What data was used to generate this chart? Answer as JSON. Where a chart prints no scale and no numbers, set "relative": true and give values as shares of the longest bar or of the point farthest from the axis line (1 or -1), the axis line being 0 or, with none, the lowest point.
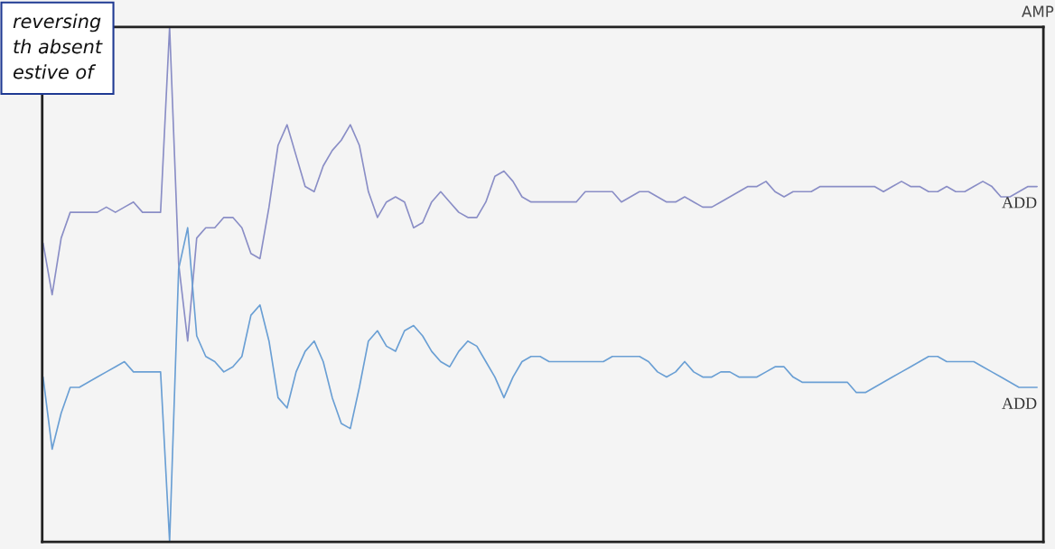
{
  "chart_data": {
    "type": "line",
    "title": "AMP",
    "relative": true,
    "legend": false,
    "annotations": [
      "reversing\nth absent\nestive of"
    ],
    "categories": [
      null,
      null,
      null,
      null,
      null,
      null,
      null,
      null,
      null,
      null,
      null,
      null,
      null,
      null,
      null,
      null,
      null,
      null,
      null,
      null,
      null,
      null,
      null,
      null,
      null,
      null,
      null,
      null,
      null,
      null,
      null,
      null,
      null,
      null,
      null,
      null,
      null,
      null,
      null,
      null,
      null,
      null,
      null,
      null,
      null,
      null,
      null,
      null,
      null,
      null,
      null,
      null,
      null,
      null,
      null,
      null,
      null,
      null,
      null,
      null,
      null,
      null,
      null,
      null,
      null,
      null,
      null,
      null,
      null,
      null,
      null,
      null,
      null,
      null,
      null,
      null,
      null,
      null,
      null,
      null,
      null,
      null,
      null,
      null,
      null,
      null,
      null,
      null,
      null,
      null,
      null,
      null,
      null,
      null,
      null,
      null,
      null,
      null,
      null,
      null,
      null,
      null,
      null,
      null,
      null,
      null,
      null,
      null,
      null,
      null,
      null
    ],
    "series": [
      {
        "name": "ADD",
        "color": "#8a8ec6",
        "values": [
          0.58,
          0.48,
          0.59,
          0.64,
          0.64,
          0.64,
          0.64,
          0.65,
          0.64,
          0.65,
          0.66,
          0.64,
          0.64,
          0.64,
          1,
          0.54,
          0.39,
          0.59,
          0.61,
          0.61,
          0.63,
          0.63,
          0.61,
          0.56,
          0.55,
          0.65,
          0.77,
          0.81,
          0.75,
          0.69,
          0.68,
          0.73,
          0.76,
          0.78,
          0.81,
          0.77,
          0.68,
          0.63,
          0.66,
          0.67,
          0.66,
          0.61,
          0.62,
          0.66,
          0.68,
          0.66,
          0.64,
          0.63,
          0.63,
          0.66,
          0.71,
          0.72,
          0.7,
          0.67,
          0.66,
          0.66,
          0.66,
          0.66,
          0.66,
          0.66,
          0.68,
          0.68,
          0.68,
          0.68,
          0.66,
          0.67,
          0.68,
          0.68,
          0.67,
          0.66,
          0.66,
          0.67,
          0.66,
          0.65,
          0.65,
          0.66,
          0.67,
          0.68,
          0.69,
          0.69,
          0.7,
          0.68,
          0.67,
          0.68,
          0.68,
          0.68,
          0.69,
          0.69,
          0.69,
          0.69,
          0.69,
          0.69,
          0.69,
          0.68,
          0.69,
          0.7,
          0.69,
          0.69,
          0.68,
          0.68,
          0.69,
          0.68,
          0.68,
          0.69,
          0.7,
          0.69,
          0.67,
          0.67,
          0.68,
          0.69,
          0.69
        ]
      },
      {
        "name": "ADD",
        "color": "#6a9fd4",
        "values": [
          0.32,
          0.18,
          0.25,
          0.3,
          0.3,
          0.31,
          0.32,
          0.33,
          0.34,
          0.35,
          0.33,
          0.33,
          0.33,
          0.33,
          0,
          0.53,
          0.61,
          0.4,
          0.36,
          0.35,
          0.33,
          0.34,
          0.36,
          0.44,
          0.46,
          0.39,
          0.28,
          0.26,
          0.33,
          0.37,
          0.39,
          0.35,
          0.28,
          0.23,
          0.22,
          0.3,
          0.39,
          0.41,
          0.38,
          0.37,
          0.41,
          0.42,
          0.4,
          0.37,
          0.35,
          0.34,
          0.37,
          0.39,
          0.38,
          0.35,
          0.32,
          0.28,
          0.32,
          0.35,
          0.36,
          0.36,
          0.35,
          0.35,
          0.35,
          0.35,
          0.35,
          0.35,
          0.35,
          0.36,
          0.36,
          0.36,
          0.36,
          0.35,
          0.33,
          0.32,
          0.33,
          0.35,
          0.33,
          0.32,
          0.32,
          0.33,
          0.33,
          0.32,
          0.32,
          0.32,
          0.33,
          0.34,
          0.34,
          0.32,
          0.31,
          0.31,
          0.31,
          0.31,
          0.31,
          0.31,
          0.29,
          0.29,
          0.3,
          0.31,
          0.32,
          0.33,
          0.34,
          0.35,
          0.36,
          0.36,
          0.35,
          0.35,
          0.35,
          0.35,
          0.34,
          0.33,
          0.32,
          0.31,
          0.3,
          0.3,
          0.3
        ]
      }
    ]
  }
}
